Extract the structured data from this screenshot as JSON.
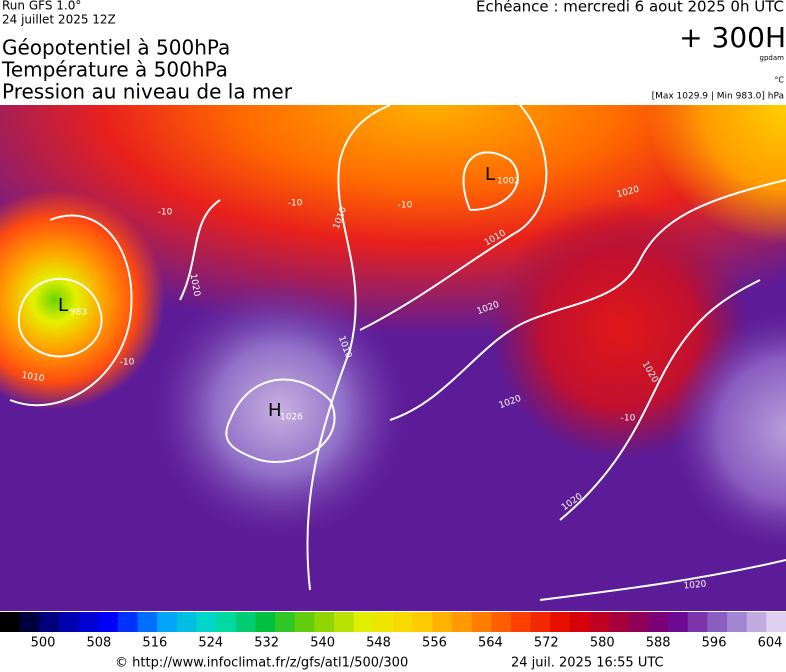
{
  "header": {
    "run": "Run GFS 1.0°",
    "run_date": "24 juillet 2025 12Z",
    "titles": [
      "Géopotentiel à 500hPa",
      "Température à 500hPa",
      "Pression au niveau de la mer"
    ],
    "echeance": "Echéance : mercredi 6 aout 2025 0h UTC",
    "forecast": "+ 300H",
    "geo_unit": "gpdam",
    "temp_unit": "°C",
    "pressure_range": "[Max 1029.9 | Min 983.0] hPa"
  },
  "map": {
    "centers": [
      {
        "symbol": "L",
        "value": "1002"
      },
      {
        "symbol": "L",
        "value": "983"
      },
      {
        "symbol": "H",
        "value": "1026"
      }
    ],
    "isobar_labels": [
      "1010",
      "1020",
      "1010",
      "1020",
      "1010",
      "1020",
      "1020",
      "1020",
      "1020",
      "1010",
      "1020"
    ],
    "temperature_labels": [
      "-10",
      "-10",
      "-10",
      "-10",
      "-10"
    ]
  },
  "colorbar": {
    "labels": [
      "500",
      "508",
      "516",
      "524",
      "532",
      "540",
      "548",
      "556",
      "564",
      "572",
      "580",
      "588",
      "596",
      "604"
    ]
  },
  "footer": {
    "url": "© http://www.infoclimat.fr/z/gfs/atl1/500/300",
    "timestamp": "24 juil. 2025 16:55 UTC"
  }
}
